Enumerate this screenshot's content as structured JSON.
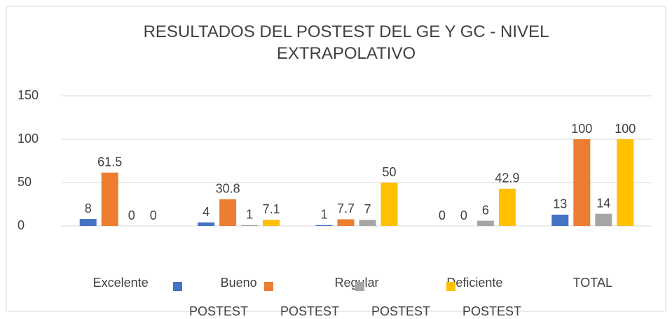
{
  "chart_data": {
    "type": "bar",
    "title": "RESULTADOS DEL POSTEST DEL GE Y GC - NIVEL EXTRAPOLATIVO",
    "categories": [
      "Excelente",
      "Bueno",
      "Regular",
      "Deficiente",
      "TOTAL"
    ],
    "series": [
      {
        "name": "POSTEST",
        "color": "#4472c4",
        "values": [
          8,
          4,
          1,
          0,
          13
        ]
      },
      {
        "name": "POSTEST",
        "color": "#ed7d31",
        "values": [
          61.5,
          30.8,
          7.7,
          0,
          100
        ]
      },
      {
        "name": "POSTEST",
        "color": "#a5a5a5",
        "values": [
          0,
          1,
          7,
          6,
          14
        ]
      },
      {
        "name": "POSTEST",
        "color": "#ffc000",
        "values": [
          0,
          7.1,
          50,
          42.9,
          100
        ]
      }
    ],
    "ylim": [
      0,
      150
    ],
    "yticks": [
      0,
      50,
      100,
      150
    ],
    "grid": true
  }
}
